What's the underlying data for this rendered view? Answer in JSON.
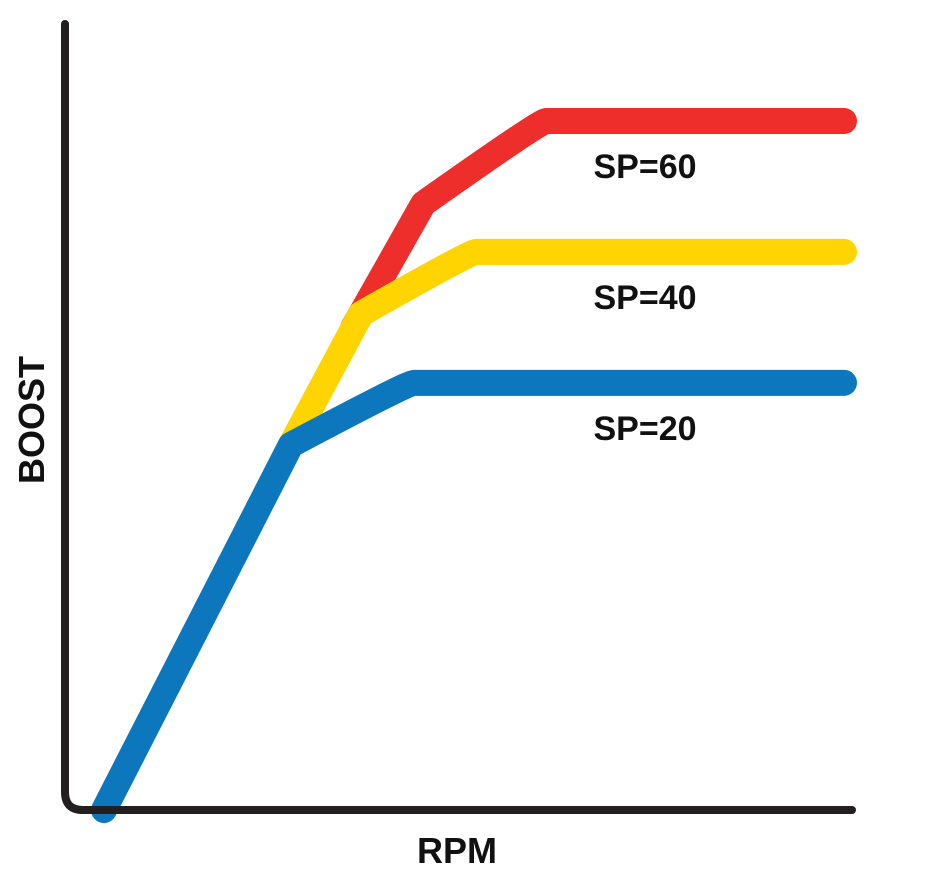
{
  "chart_data": {
    "type": "line",
    "xlabel": "RPM",
    "ylabel": "BOOST",
    "xlim": [
      0,
      100
    ],
    "ylim": [
      0,
      100
    ],
    "grid": false,
    "legend": "none",
    "series": [
      {
        "name": "SP=20",
        "color": "#0C77BC",
        "x": [
          5,
          29,
          44,
          100
        ],
        "y": [
          0,
          53,
          62,
          62
        ]
      },
      {
        "name": "SP=40",
        "color": "#FFD400",
        "x": [
          29,
          38,
          52,
          100
        ],
        "y": [
          53,
          72,
          81,
          81
        ]
      },
      {
        "name": "SP=60",
        "color": "#EE2E2B",
        "x": [
          37,
          46,
          61,
          100
        ],
        "y": [
          70,
          88,
          100,
          100
        ]
      }
    ]
  }
}
